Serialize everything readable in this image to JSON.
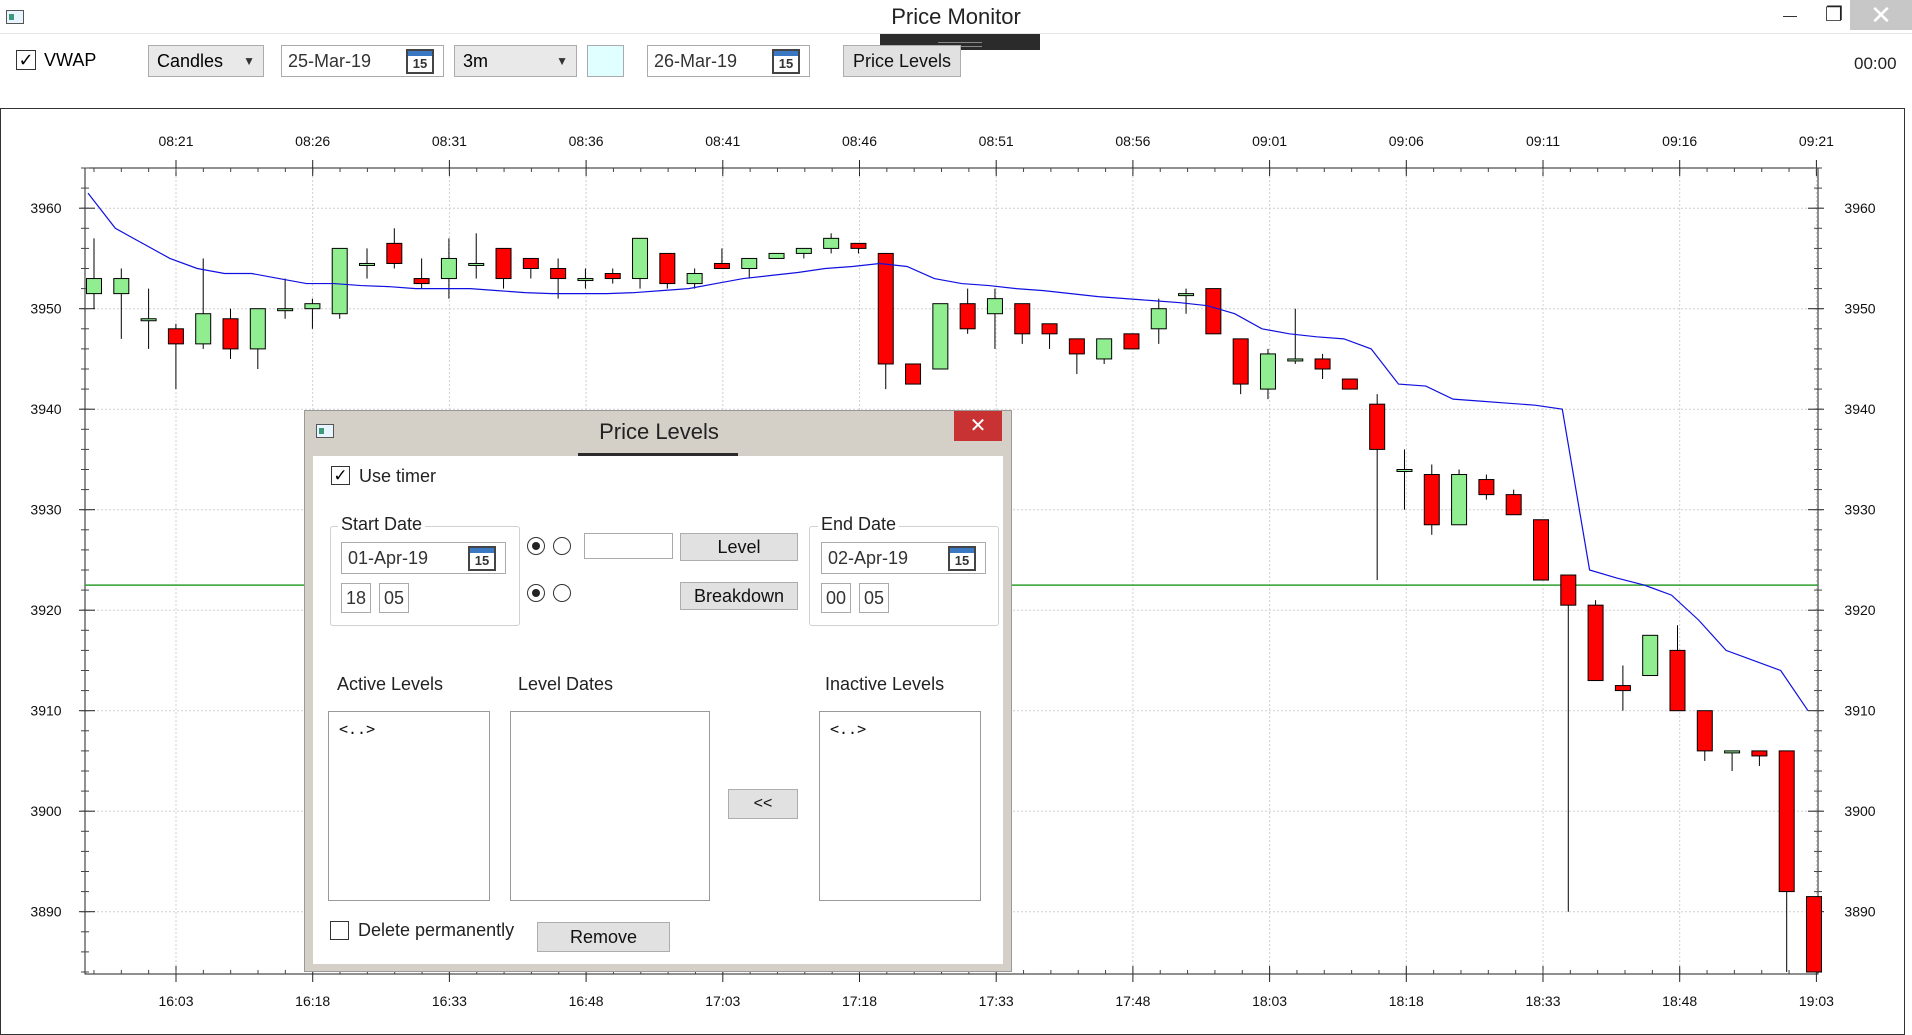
{
  "window": {
    "title": "Price Monitor",
    "minimize_glyph": "—",
    "maximize_glyph": "❐",
    "close_glyph": "✕"
  },
  "toolbar": {
    "vwap_checked": true,
    "vwap_label": "VWAP",
    "chart_type": "Candles",
    "start_date": "25-Mar-19",
    "interval": "3m",
    "end_date": "26-Mar-19",
    "calendar_day": "15",
    "price_levels_button": "Price Levels",
    "clock": "00:00"
  },
  "dialog": {
    "title": "Price Levels",
    "close_glyph": "✕",
    "use_timer_label": "Use timer",
    "use_timer_checked": true,
    "start_group": {
      "title": "Start Date",
      "date": "01-Apr-19",
      "hour": "18",
      "minute": "05"
    },
    "end_group": {
      "title": "End Date",
      "date": "02-Apr-19",
      "hour": "00",
      "minute": "05"
    },
    "level_input": "",
    "level_button": "Level",
    "breakdown_button": "Breakdown",
    "active_levels_label": "Active Levels",
    "level_dates_label": "Level Dates",
    "inactive_levels_label": "Inactive Levels",
    "active_levels": [
      "<..>"
    ],
    "inactive_levels": [
      "<..>"
    ],
    "move_button": "<<",
    "delete_permanently_label": "Delete permanently",
    "remove_button": "Remove"
  },
  "colors": {
    "up": "#90ee90",
    "down": "#ff0000",
    "vwap": "#1010e0",
    "level_line": "#2e9e2e"
  },
  "chart_data": {
    "type": "candlestick",
    "top_ticks": [
      "08:21",
      "08:26",
      "08:31",
      "08:36",
      "08:41",
      "08:46",
      "08:51",
      "08:56",
      "09:01",
      "09:06",
      "09:11",
      "09:16",
      "09:21"
    ],
    "bottom_ticks": [
      "16:03",
      "16:18",
      "16:33",
      "16:48",
      "17:03",
      "17:18",
      "17:33",
      "17:48",
      "18:03",
      "18:18",
      "18:33",
      "18:48",
      "19:03"
    ],
    "y_ticks": [
      3960,
      3950,
      3940,
      3930,
      3920,
      3910,
      3900,
      3890
    ],
    "ylim": [
      3883.8,
      3964
    ],
    "price_level": 3922.5,
    "grid": true,
    "candles": [
      [
        3951.5,
        3953,
        3957,
        3950
      ],
      [
        3951.5,
        3953,
        3954,
        3947
      ],
      [
        3949,
        3949,
        3952,
        3946
      ],
      [
        3948,
        3946.5,
        3948.5,
        3942
      ],
      [
        3946.5,
        3949.5,
        3955,
        3946
      ],
      [
        3949,
        3946,
        3950,
        3945
      ],
      [
        3946,
        3950,
        3950,
        3944
      ],
      [
        3950,
        3950,
        3953,
        3949
      ],
      [
        3950,
        3950.5,
        3951,
        3948
      ],
      [
        3949.5,
        3956,
        3956,
        3949
      ],
      [
        3954.5,
        3954.5,
        3956,
        3953
      ],
      [
        3956.5,
        3954.5,
        3958,
        3954
      ],
      [
        3953,
        3952.5,
        3955,
        3952
      ],
      [
        3953,
        3955,
        3957,
        3951
      ],
      [
        3954.5,
        3954.5,
        3957.5,
        3953
      ],
      [
        3956,
        3953,
        3956,
        3952
      ],
      [
        3955,
        3954,
        3955,
        3953
      ],
      [
        3954,
        3953,
        3955,
        3951
      ],
      [
        3953,
        3953,
        3954,
        3952
      ],
      [
        3953.5,
        3953,
        3954,
        3952.5
      ],
      [
        3953,
        3957,
        3957,
        3952
      ],
      [
        3955.5,
        3952.5,
        3955.5,
        3952
      ],
      [
        3952.5,
        3953.5,
        3954,
        3952
      ],
      [
        3954.5,
        3954,
        3956,
        3954
      ],
      [
        3954,
        3955,
        3955,
        3953
      ],
      [
        3955,
        3955.5,
        3955.5,
        3955
      ],
      [
        3955.5,
        3956,
        3956,
        3955
      ],
      [
        3956,
        3957,
        3957.5,
        3955.5
      ],
      [
        3956.5,
        3956,
        3956.5,
        3955.5
      ],
      [
        3955.5,
        3944.5,
        3955.5,
        3942
      ],
      [
        3944.5,
        3942.5,
        3944.5,
        3942.5
      ],
      [
        3944,
        3950.5,
        3950.5,
        3944
      ],
      [
        3950.5,
        3948,
        3952,
        3947.5
      ],
      [
        3949.5,
        3951,
        3952,
        3946
      ],
      [
        3950.5,
        3947.5,
        3950.5,
        3946.5
      ],
      [
        3948.5,
        3947.5,
        3948.5,
        3946
      ],
      [
        3947,
        3945.5,
        3947,
        3943.5
      ],
      [
        3945,
        3947,
        3947,
        3944.5
      ],
      [
        3947.5,
        3946,
        3947.5,
        3946
      ],
      [
        3948,
        3950,
        3951,
        3946.5
      ],
      [
        3951.5,
        3951.5,
        3952,
        3949.5
      ],
      [
        3952,
        3947.5,
        3952,
        3947.5
      ],
      [
        3947,
        3942.5,
        3947,
        3941.5
      ],
      [
        3942,
        3945.5,
        3946,
        3941
      ],
      [
        3945,
        3945,
        3950,
        3944.5
      ],
      [
        3945,
        3944,
        3945.5,
        3943
      ],
      [
        3943,
        3942,
        3943,
        3942
      ],
      [
        3940.5,
        3936,
        3941.5,
        3923
      ],
      [
        3934,
        3934,
        3936,
        3930
      ],
      [
        3933.5,
        3928.5,
        3934.5,
        3927.5
      ],
      [
        3928.5,
        3933.5,
        3934,
        3928.5
      ],
      [
        3933,
        3931.5,
        3933.5,
        3931
      ],
      [
        3931.5,
        3929.5,
        3932,
        3929.5
      ],
      [
        3929,
        3923,
        3929,
        3923
      ],
      [
        3923.5,
        3920.5,
        3923.5,
        3890
      ],
      [
        3920.5,
        3913,
        3921,
        3913
      ],
      [
        3912.5,
        3912,
        3914.5,
        3910
      ],
      [
        3913.5,
        3917.5,
        3917.5,
        3913.5
      ],
      [
        3916,
        3910,
        3918.5,
        3910
      ],
      [
        3910,
        3906,
        3910,
        3905
      ],
      [
        3906,
        3906,
        3906,
        3904
      ],
      [
        3906,
        3905.5,
        3906,
        3904.5
      ],
      [
        3906,
        3892,
        3906,
        3884
      ],
      [
        3891.5,
        3884,
        3891.5,
        3884
      ]
    ],
    "vwap": [
      3961.5,
      3958,
      3956.5,
      3955,
      3954,
      3953.5,
      3953.5,
      3953,
      3952.5,
      3952.5,
      3952.3,
      3952.2,
      3952,
      3952,
      3952,
      3951.8,
      3951.6,
      3951.5,
      3951.5,
      3951.5,
      3951.6,
      3951.8,
      3952,
      3952.5,
      3953,
      3953.3,
      3953.6,
      3954,
      3954.2,
      3954.5,
      3954.2,
      3953,
      3952.5,
      3952.3,
      3952,
      3951.8,
      3951.5,
      3951.2,
      3951,
      3950.8,
      3950.6,
      3950.3,
      3949.5,
      3948,
      3947.5,
      3947.2,
      3947,
      3946,
      3942.5,
      3942.3,
      3941,
      3940.8,
      3940.6,
      3940.4,
      3940,
      3924,
      3923.2,
      3922.5,
      3921.5,
      3919,
      3916,
      3915,
      3914,
      3910
    ]
  }
}
